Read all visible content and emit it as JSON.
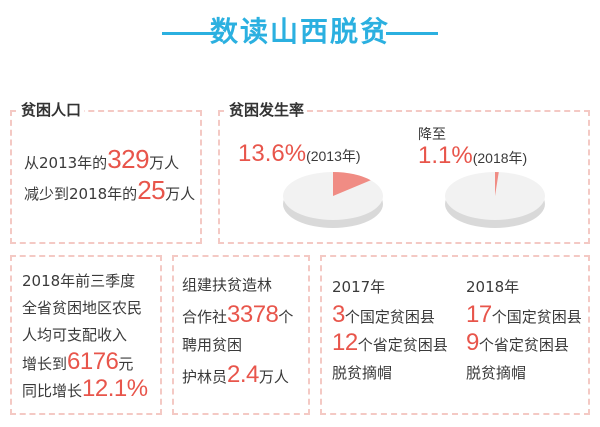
{
  "header": {
    "title": "数读山西脱贫"
  },
  "population": {
    "title": "贫困人口",
    "line1_prefix": "从2013年的",
    "line1_value": "329",
    "line1_suffix": "万人",
    "line2_prefix": "减少到2018年的",
    "line2_value": "25",
    "line2_suffix": "万人"
  },
  "incidence": {
    "title": "贫困发生率",
    "left_value": "13.6%",
    "left_year": "(2013年)",
    "left_fraction": 0.136,
    "drop_label": "降至",
    "right_value": "1.1%",
    "right_year": "(2018年)",
    "right_fraction": 0.011,
    "colors": {
      "slice": "#f08c84",
      "pie": "#f2f2f2",
      "shadow": "#d9d9d9"
    }
  },
  "income": {
    "line1": "2018年前三季度",
    "line2": "全省贫困地区农民",
    "line3": "人均可支配收入",
    "line4_prefix": "增长到",
    "line4_value": "6176",
    "line4_suffix": "元",
    "line5_prefix": "同比增长",
    "line5_value": "12.1%"
  },
  "forestry": {
    "line1": "组建扶贫造林",
    "line2_prefix": "合作社",
    "line2_value": "3378",
    "line2_suffix": "个",
    "line3": "聘用贫困",
    "line4_prefix": "护林员",
    "line4_value": "2.4",
    "line4_suffix": "万人"
  },
  "counties": {
    "y2017": {
      "year": "2017年",
      "national_value": "3",
      "national_label": "个国定贫困县",
      "provincial_value": "12",
      "provincial_label": "个省定贫困县",
      "status": "脱贫摘帽"
    },
    "y2018": {
      "year": "2018年",
      "national_value": "17",
      "national_label": "个国定贫困县",
      "provincial_value": "9",
      "provincial_label": "个省定贫困县",
      "status": "脱贫摘帽"
    }
  },
  "colors": {
    "accent_blue": "#2bb0e0",
    "accent_red": "#e8554b",
    "border": "#f4c9c4"
  }
}
